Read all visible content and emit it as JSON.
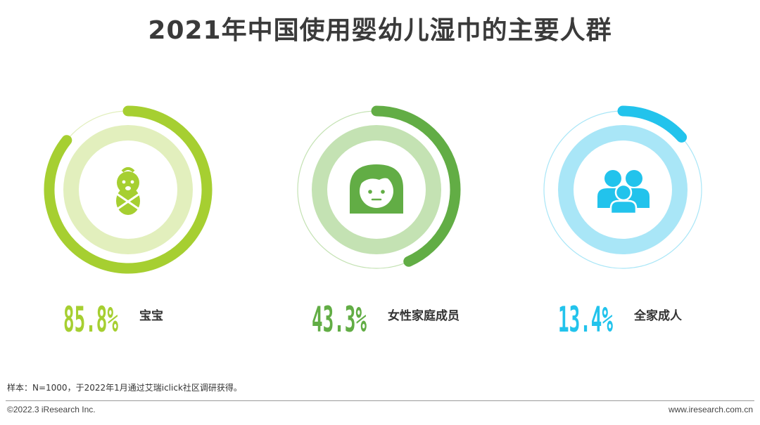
{
  "title": "2021年中国使用婴幼儿湿巾的主要人群",
  "chart_data": {
    "type": "pie",
    "unit": "%",
    "items": [
      {
        "label": "宝宝",
        "value": 85.8,
        "display": "85.8%",
        "color": "#a6cf31",
        "track": "#e2efbd",
        "icon": "baby-icon"
      },
      {
        "label": "女性家庭成员",
        "value": 43.3,
        "display": "43.3%",
        "color": "#62ad45",
        "track": "#c4e2b3",
        "icon": "woman-icon"
      },
      {
        "label": "全家成人",
        "value": 13.4,
        "display": "13.4%",
        "color": "#22c3ec",
        "track": "#a9e6f7",
        "icon": "family-icon"
      }
    ]
  },
  "footer": {
    "note": "样本：N=1000，于2022年1月通过艾瑞iclick社区调研获得。",
    "copyright": "©2022.3 iResearch Inc.",
    "website": "www.iresearch.com.cn"
  }
}
